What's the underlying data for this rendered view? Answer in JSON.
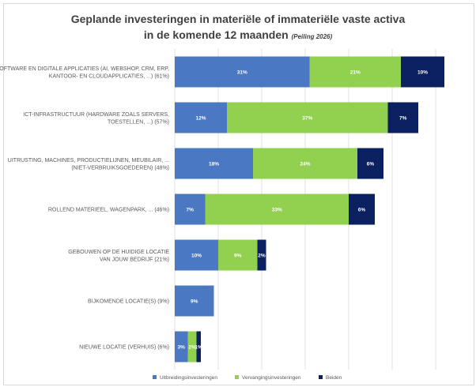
{
  "chart_data": {
    "type": "bar",
    "orientation": "horizontal",
    "stacked": true,
    "title_line1": "Geplande investeringen in materiële of immateriële vaste activa",
    "title_line2": "in de komende 12 maanden",
    "title_note": "(Peiling 2026)",
    "categories": [
      [
        "SOFTWARE EN DIGITALE APPLICATIES (AI, WEBSHOP, CRM, ERP,",
        "KANTOOR- EN CLOUDAPPLICATIES, ...) (61%)"
      ],
      [
        "ICT-INFRASTRUCTUUR (HARDWARE ZOALS SERVERS,",
        "TOESTELLEN, ...) (57%)"
      ],
      [
        "UITRUSTING, MACHINES, PRODUCTIELIJNEN, MEUBILAIR, ...",
        "(NIET-VERBRUIKSGOEDEREN) (48%)"
      ],
      [
        "ROLLEND MATERIEEL, WAGENPARK, ... (46%)"
      ],
      [
        "GEBOUWEN OP DE HUIDIGE LOCATIE",
        "VAN JOUW BEDRIJF (21%)"
      ],
      [
        "BIJKOMENDE LOCATIE(S) (9%)"
      ],
      [
        "NIEUWE LOCATIE (VERHUIS) (6%)"
      ]
    ],
    "series": [
      {
        "name": "Uitbreidingsinvesteringen",
        "color": "#4a78c2",
        "values": [
          31,
          12,
          18,
          7,
          10,
          9,
          3
        ],
        "labels": [
          "31%",
          "12%",
          "18%",
          "7%",
          "10%",
          "9%",
          "3%"
        ]
      },
      {
        "name": "Vervangingsinvesteringen",
        "color": "#92d050",
        "values": [
          21,
          37,
          24,
          33,
          9,
          0,
          2
        ],
        "labels": [
          "21%",
          "37%",
          "24%",
          "33%",
          "9%",
          "",
          "2%"
        ]
      },
      {
        "name": "Beiden",
        "color": "#0b2060",
        "values": [
          10,
          7,
          6,
          6,
          2,
          0,
          1
        ],
        "labels": [
          "10%",
          "7%",
          "6%",
          "6%",
          "2%",
          "",
          "1%"
        ]
      }
    ],
    "xlim": [
      0,
      70
    ],
    "grid": true,
    "legend_position": "bottom"
  }
}
